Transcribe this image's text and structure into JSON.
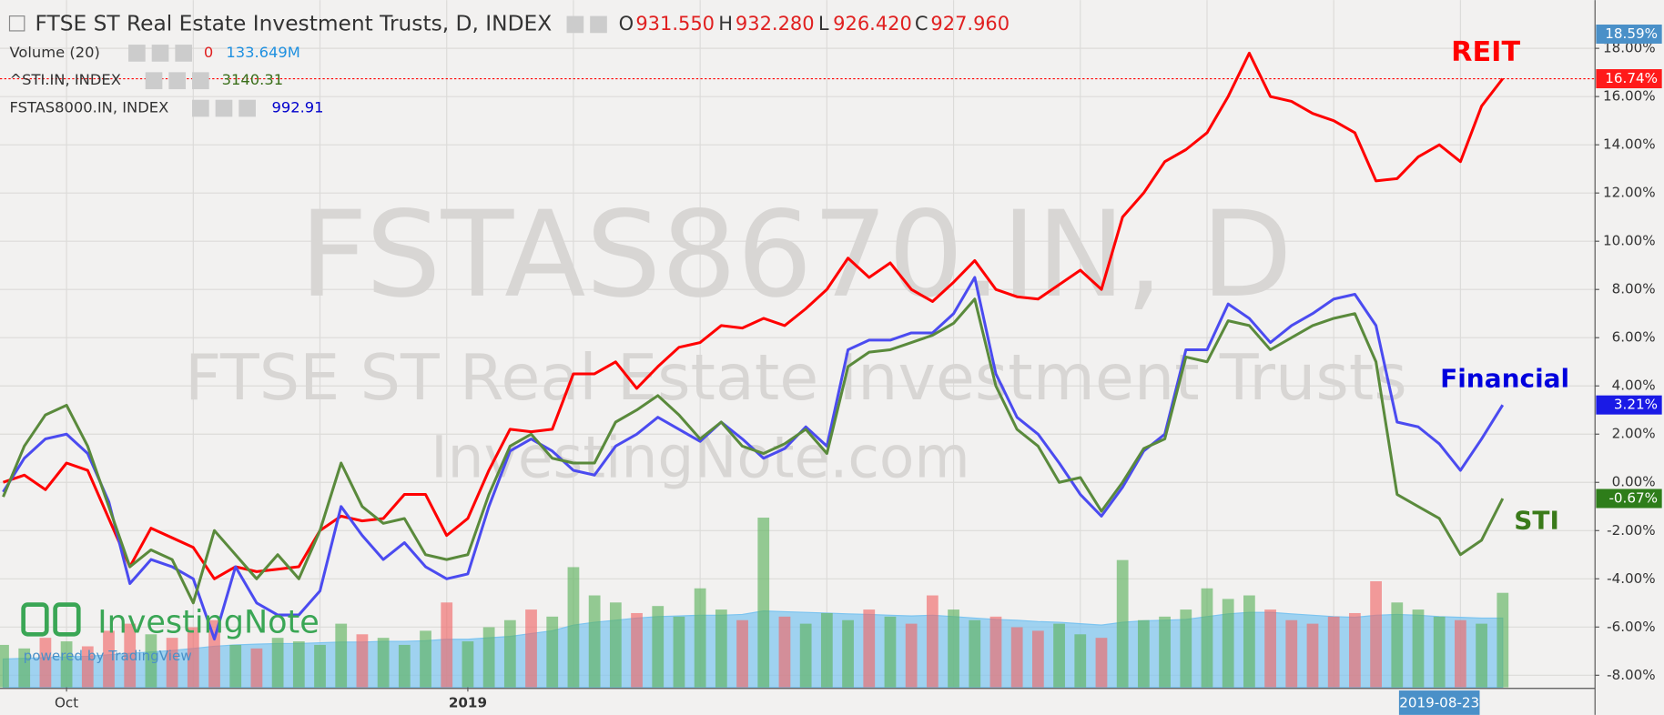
{
  "chart_data": {
    "type": "line",
    "title": "FTSE ST Real Estate Investment Trusts, D, INDEX",
    "ohlc": [
      {
        "key": "O",
        "value": "931.550"
      },
      {
        "key": "H",
        "value": "932.280"
      },
      {
        "key": "L",
        "value": "926.420"
      },
      {
        "key": "C",
        "value": "927.960"
      }
    ],
    "legend_rows": [
      {
        "name": "Volume (20)",
        "change": "0",
        "value": "133.649M"
      },
      {
        "name": "^STI.IN, INDEX",
        "value": "3140.31"
      },
      {
        "name": "FSTAS8000.IN, INDEX",
        "value": "992.91"
      }
    ],
    "watermarks": [
      "FSTAS8670.IN, D",
      "FTSE ST Real Estate Investment Trusts",
      "InvestingNote.com"
    ],
    "logo": {
      "text": "InvestingNote",
      "subtext": "powered by TradingView"
    },
    "categories": [
      null,
      null,
      null,
      "Oct",
      null,
      null,
      null,
      null,
      null,
      null,
      null,
      null,
      null,
      null,
      null,
      null,
      null,
      null,
      null,
      null,
      null,
      null,
      "2019",
      null,
      null,
      null,
      null,
      null,
      null,
      null,
      null,
      null,
      null,
      null,
      null,
      null,
      null,
      null,
      null,
      null,
      null,
      null,
      null,
      null,
      null,
      null,
      null,
      null,
      null,
      null,
      null,
      null,
      null,
      null,
      null,
      null,
      null,
      null,
      null,
      null,
      null,
      null,
      null,
      null,
      null,
      null,
      null,
      null,
      "2019-08-23",
      null,
      null,
      null
    ],
    "series": [
      {
        "name": "REIT",
        "color": "#ff0000",
        "last_label": {
          "value": 16.74,
          "label": "16.74%"
        },
        "values": [
          0.0,
          0.3,
          -0.3,
          0.8,
          0.5,
          -1.5,
          -3.5,
          -1.9,
          -2.3,
          -2.7,
          -4.0,
          -3.5,
          -3.7,
          -3.6,
          -3.5,
          -2.0,
          -1.4,
          -1.6,
          -1.5,
          -0.5,
          -0.5,
          -2.2,
          -1.5,
          0.5,
          2.2,
          2.1,
          2.2,
          4.5,
          4.5,
          5.0,
          3.9,
          4.8,
          5.6,
          5.8,
          6.5,
          6.4,
          6.8,
          6.5,
          7.2,
          8.0,
          9.3,
          8.5,
          9.1,
          8.0,
          7.5,
          8.3,
          9.2,
          8.0,
          7.7,
          7.6,
          8.2,
          8.8,
          8.0,
          11.0,
          12.0,
          13.3,
          13.8,
          14.5,
          16.0,
          17.8,
          16.0,
          15.8,
          15.3,
          15.0,
          14.5,
          12.5,
          12.6,
          13.5,
          14.0,
          13.3,
          15.6,
          16.74
        ]
      },
      {
        "name": "Financial",
        "color": "#4b4bf0",
        "last_label": {
          "value": 3.21,
          "label": "3.21%"
        },
        "values": [
          -0.4,
          1.0,
          1.8,
          2.0,
          1.2,
          -0.8,
          -4.2,
          -3.2,
          -3.5,
          -4.0,
          -6.5,
          -3.5,
          -5.0,
          -5.5,
          -5.5,
          -4.5,
          -1.0,
          -2.2,
          -3.2,
          -2.5,
          -3.5,
          -4.0,
          -3.8,
          -1.0,
          1.3,
          1.8,
          1.3,
          0.5,
          0.3,
          1.5,
          2.0,
          2.7,
          2.2,
          1.7,
          2.5,
          1.8,
          1.0,
          1.4,
          2.3,
          1.5,
          5.5,
          5.9,
          5.9,
          6.2,
          6.2,
          7.0,
          8.5,
          4.5,
          2.7,
          2.0,
          0.8,
          -0.5,
          -1.4,
          -0.2,
          1.3,
          2.0,
          5.5,
          5.5,
          7.4,
          6.8,
          5.8,
          6.5,
          7.0,
          7.6,
          7.8,
          6.5,
          2.5,
          2.3,
          1.6,
          0.5,
          1.8,
          3.21
        ]
      },
      {
        "name": "STI",
        "color": "#5a8a3c",
        "last_label": {
          "value": -0.67,
          "label": "-0.67%"
        },
        "values": [
          -0.6,
          1.5,
          2.8,
          3.2,
          1.5,
          -1.0,
          -3.5,
          -2.8,
          -3.2,
          -5.0,
          -2.0,
          -3.0,
          -4.0,
          -3.0,
          -4.0,
          -2.0,
          0.8,
          -1.0,
          -1.7,
          -1.5,
          -3.0,
          -3.2,
          -3.0,
          -0.5,
          1.5,
          2.0,
          1.0,
          0.8,
          0.8,
          2.5,
          3.0,
          3.6,
          2.8,
          1.8,
          2.5,
          1.5,
          1.2,
          1.6,
          2.2,
          1.2,
          4.8,
          5.4,
          5.5,
          5.8,
          6.1,
          6.6,
          7.6,
          4.0,
          2.2,
          1.5,
          0.0,
          0.2,
          -1.2,
          0.0,
          1.4,
          1.8,
          5.2,
          5.0,
          6.7,
          6.5,
          5.5,
          6.0,
          6.5,
          6.8,
          7.0,
          5.0,
          -0.5,
          -1.0,
          -1.5,
          -3.0,
          -2.4,
          -0.67
        ]
      }
    ],
    "top_marker": {
      "value": 18.59,
      "label": "18.59%"
    },
    "ylim": [
      -8.5,
      20
    ],
    "yticks": [
      {
        "value": -8,
        "label": "-8.00%"
      },
      {
        "value": -6,
        "label": "-6.00%"
      },
      {
        "value": -4,
        "label": "-4.00%"
      },
      {
        "value": -2,
        "label": "-2.00%"
      },
      {
        "value": 0,
        "label": "0.00%"
      },
      {
        "value": 2,
        "label": "2.00%"
      },
      {
        "value": 4,
        "label": "4.00%"
      },
      {
        "value": 6,
        "label": "6.00%"
      },
      {
        "value": 8,
        "label": "8.00%"
      },
      {
        "value": 10,
        "label": "10.00%"
      },
      {
        "value": 12,
        "label": "12.00%"
      },
      {
        "value": 14,
        "label": "14.00%"
      },
      {
        "value": 16,
        "label": "16.00%"
      },
      {
        "value": 18,
        "label": "18.00%"
      }
    ],
    "grid": true,
    "volume": {
      "up_color": "#5fb35f",
      "down_color": "#f06a6a",
      "ma_color": "#7cc4f0",
      "ylim": [
        0,
        300
      ],
      "values": [
        60,
        55,
        70,
        65,
        58,
        80,
        90,
        75,
        70,
        85,
        95,
        60,
        55,
        70,
        65,
        60,
        90,
        75,
        70,
        60,
        80,
        120,
        65,
        85,
        95,
        110,
        100,
        170,
        130,
        120,
        105,
        115,
        100,
        140,
        110,
        95,
        240,
        100,
        90,
        105,
        95,
        110,
        100,
        90,
        130,
        110,
        95,
        100,
        85,
        80,
        90,
        75,
        70,
        180,
        95,
        100,
        110,
        140,
        125,
        130,
        110,
        95,
        90,
        100,
        105,
        150,
        120,
        110,
        100,
        95,
        90,
        133.649
      ],
      "ma_values": [
        40,
        41,
        42,
        43,
        44,
        46,
        48,
        50,
        52,
        55,
        58,
        60,
        61,
        62,
        62,
        63,
        64,
        64,
        65,
        65,
        66,
        68,
        68,
        70,
        72,
        76,
        80,
        88,
        92,
        95,
        98,
        100,
        101,
        102,
        102,
        103,
        108,
        107,
        106,
        105,
        104,
        103,
        102,
        101,
        102,
        100,
        98,
        96,
        95,
        93,
        92,
        90,
        88,
        92,
        94,
        95,
        96,
        100,
        104,
        106,
        106,
        104,
        102,
        100,
        99,
        102,
        103,
        102,
        100,
        99,
        98,
        98
      ]
    }
  }
}
